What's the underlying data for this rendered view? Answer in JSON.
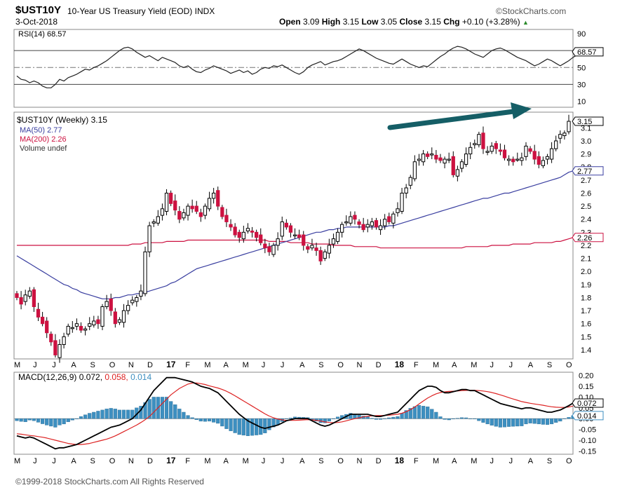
{
  "header": {
    "symbol": "$UST10Y",
    "description": "10-Year US Treasury Yield (EOD)",
    "exchange": "INDX",
    "brand": "©StockCharts.com",
    "date": "3-Oct-2018",
    "open_label": "Open",
    "open": "3.09",
    "high_label": "High",
    "high": "3.15",
    "low_label": "Low",
    "low": "3.05",
    "close_label": "Close",
    "close": "3.15",
    "chg_label": "Chg",
    "chg": "+0.10 (+3.28%)",
    "chg_arrow": "▲"
  },
  "footer": {
    "copyright": "©1999-2018 StockCharts.com All Rights Reserved"
  },
  "colors": {
    "up": "#ffffff",
    "down": "#cc1140",
    "outline": "#000000",
    "ma50": "#3a3fa0",
    "ma200": "#cc1140",
    "macd": "#000000",
    "signal": "#dd2222",
    "histogram": "#3d8fc0",
    "arrow": "#155e66"
  },
  "chart_data": [
    {
      "type": "line",
      "panel": "RSI",
      "legend": "RSI(14) 68.57",
      "last_value_label": "68.57",
      "yticks": [
        10,
        30,
        50,
        70,
        90
      ],
      "ylim": [
        3,
        95
      ],
      "reference_lines": [
        30,
        50,
        70
      ],
      "values": [
        40,
        36,
        35,
        32,
        34,
        32,
        28,
        26,
        26,
        30,
        36,
        34,
        38,
        40,
        42,
        45,
        48,
        47,
        50,
        52,
        55,
        58,
        62,
        66,
        70,
        73,
        74,
        72,
        68,
        65,
        62,
        64,
        61,
        58,
        62,
        60,
        58,
        56,
        52,
        50,
        52,
        48,
        45,
        44,
        47,
        49,
        52,
        50,
        48,
        46,
        43,
        45,
        47,
        44,
        46,
        42,
        44,
        48,
        50,
        49,
        52,
        51,
        53,
        50,
        47,
        44,
        42,
        45,
        50,
        53,
        55,
        57,
        53,
        55,
        57,
        58,
        60,
        63,
        66,
        69,
        72,
        70,
        67,
        64,
        61,
        59,
        57,
        55,
        54,
        57,
        60,
        57,
        54,
        52,
        50,
        52,
        51,
        55,
        59,
        63,
        66,
        70,
        73,
        75,
        74,
        72,
        69,
        66,
        64,
        62,
        66,
        70,
        72,
        73,
        71,
        68,
        65,
        62,
        60,
        58,
        55,
        52,
        54,
        57,
        60,
        58,
        55,
        52,
        55,
        58,
        62,
        65,
        68.57
      ]
    },
    {
      "type": "candlestick",
      "panel": "Price",
      "legend_title": "$UST10Y (Weekly) 3.15",
      "legend_ma50": "MA(50) 2.77",
      "legend_ma200": "MA(200) 2.26",
      "legend_volume": "Volume undef",
      "last_value_labels": [
        "3.15",
        "2.77",
        "2.26"
      ],
      "ylim": [
        1.33,
        3.22
      ],
      "yticks": [
        1.4,
        1.5,
        1.6,
        1.7,
        1.8,
        1.9,
        2.0,
        2.1,
        2.2,
        2.3,
        2.4,
        2.5,
        2.6,
        2.7,
        2.8,
        2.9,
        3.0,
        3.1
      ],
      "x_axis_labels": [
        "M",
        "J",
        "J",
        "A",
        "S",
        "O",
        "N",
        "D",
        "17",
        "F",
        "M",
        "A",
        "M",
        "J",
        "J",
        "A",
        "S",
        "O",
        "N",
        "D",
        "18",
        "F",
        "M",
        "A",
        "M",
        "J",
        "J",
        "A",
        "S",
        "O"
      ],
      "close": [
        1.8,
        1.75,
        1.82,
        1.85,
        1.73,
        1.65,
        1.6,
        1.53,
        1.46,
        1.36,
        1.44,
        1.5,
        1.58,
        1.57,
        1.6,
        1.55,
        1.56,
        1.6,
        1.62,
        1.6,
        1.73,
        1.77,
        1.7,
        1.6,
        1.63,
        1.7,
        1.74,
        1.78,
        1.8,
        1.85,
        2.15,
        2.35,
        2.38,
        2.42,
        2.48,
        2.6,
        2.52,
        2.47,
        2.4,
        2.45,
        2.5,
        2.48,
        2.46,
        2.42,
        2.5,
        2.56,
        2.6,
        2.5,
        2.42,
        2.38,
        2.34,
        2.28,
        2.26,
        2.3,
        2.33,
        2.3,
        2.26,
        2.22,
        2.18,
        2.15,
        2.2,
        2.25,
        2.38,
        2.34,
        2.3,
        2.28,
        2.26,
        2.2,
        2.17,
        2.2,
        2.16,
        2.08,
        2.15,
        2.2,
        2.25,
        2.3,
        2.36,
        2.38,
        2.42,
        2.4,
        2.36,
        2.32,
        2.36,
        2.38,
        2.34,
        2.35,
        2.4,
        2.38,
        2.44,
        2.48,
        2.6,
        2.64,
        2.72,
        2.84,
        2.86,
        2.9,
        2.88,
        2.9,
        2.86,
        2.85,
        2.86,
        2.86,
        2.74,
        2.78,
        2.84,
        2.9,
        2.95,
        2.98,
        3.05,
        2.94,
        2.92,
        2.96,
        2.94,
        2.92,
        2.87,
        2.86,
        2.84,
        2.86,
        2.87,
        2.96,
        2.92,
        2.86,
        2.82,
        2.85,
        2.88,
        2.94,
        3.0,
        3.05,
        3.06,
        3.15
      ],
      "ma50": [
        2.12,
        2.1,
        2.08,
        2.06,
        2.04,
        2.02,
        2.0,
        1.98,
        1.96,
        1.94,
        1.92,
        1.9,
        1.89,
        1.87,
        1.86,
        1.84,
        1.83,
        1.82,
        1.81,
        1.8,
        1.79,
        1.79,
        1.79,
        1.8,
        1.8,
        1.81,
        1.82,
        1.82,
        1.83,
        1.83,
        1.84,
        1.85,
        1.86,
        1.87,
        1.88,
        1.89,
        1.91,
        1.92,
        1.94,
        1.96,
        1.98,
        2.0,
        2.02,
        2.03,
        2.04,
        2.05,
        2.06,
        2.07,
        2.08,
        2.09,
        2.1,
        2.11,
        2.12,
        2.13,
        2.14,
        2.15,
        2.16,
        2.17,
        2.18,
        2.19,
        2.2,
        2.21,
        2.22,
        2.23,
        2.24,
        2.25,
        2.26,
        2.27,
        2.28,
        2.29,
        2.3,
        2.3,
        2.31,
        2.32,
        2.32,
        2.33,
        2.33,
        2.34,
        2.34,
        2.34,
        2.34,
        2.34,
        2.34,
        2.34,
        2.34,
        2.34,
        2.34,
        2.35,
        2.35,
        2.36,
        2.37,
        2.38,
        2.39,
        2.4,
        2.41,
        2.42,
        2.43,
        2.44,
        2.45,
        2.46,
        2.47,
        2.48,
        2.49,
        2.5,
        2.51,
        2.52,
        2.53,
        2.54,
        2.55,
        2.56,
        2.56,
        2.57,
        2.58,
        2.59,
        2.6,
        2.6,
        2.61,
        2.62,
        2.63,
        2.64,
        2.65,
        2.66,
        2.67,
        2.68,
        2.69,
        2.7,
        2.71,
        2.72,
        2.74,
        2.76,
        2.77
      ],
      "ma200": [
        2.2,
        2.2,
        2.2,
        2.2,
        2.2,
        2.2,
        2.2,
        2.2,
        2.2,
        2.2,
        2.2,
        2.2,
        2.2,
        2.2,
        2.2,
        2.2,
        2.2,
        2.2,
        2.2,
        2.2,
        2.2,
        2.2,
        2.2,
        2.2,
        2.2,
        2.2,
        2.2,
        2.21,
        2.21,
        2.21,
        2.22,
        2.22,
        2.22,
        2.22,
        2.22,
        2.23,
        2.23,
        2.23,
        2.23,
        2.23,
        2.24,
        2.24,
        2.24,
        2.24,
        2.24,
        2.24,
        2.24,
        2.24,
        2.24,
        2.24,
        2.24,
        2.24,
        2.24,
        2.24,
        2.24,
        2.24,
        2.24,
        2.24,
        2.24,
        2.23,
        2.23,
        2.23,
        2.23,
        2.23,
        2.22,
        2.22,
        2.22,
        2.22,
        2.22,
        2.21,
        2.21,
        2.21,
        2.21,
        2.21,
        2.2,
        2.2,
        2.2,
        2.2,
        2.2,
        2.19,
        2.19,
        2.19,
        2.19,
        2.19,
        2.19,
        2.18,
        2.18,
        2.18,
        2.18,
        2.18,
        2.18,
        2.18,
        2.18,
        2.18,
        2.18,
        2.18,
        2.18,
        2.18,
        2.18,
        2.18,
        2.18,
        2.18,
        2.18,
        2.18,
        2.18,
        2.19,
        2.19,
        2.19,
        2.19,
        2.19,
        2.19,
        2.2,
        2.2,
        2.2,
        2.2,
        2.2,
        2.21,
        2.21,
        2.21,
        2.21,
        2.21,
        2.22,
        2.22,
        2.22,
        2.22,
        2.22,
        2.23,
        2.23,
        2.24,
        2.25,
        2.26
      ]
    },
    {
      "type": "line",
      "panel": "MACD",
      "legend": "MACD(12,26,9) 0.072, 0.058, 0.014",
      "legend_main": "MACD(12,26,9) 0.072,",
      "legend_signal": "0.058",
      "legend_hist": "0.014",
      "last_value_labels": [
        "0.072",
        "0.014"
      ],
      "ylim": [
        -0.165,
        0.215
      ],
      "yticks": [
        0.2,
        0.15,
        0.1,
        0.05,
        0.0,
        -0.05,
        -0.1,
        -0.15
      ],
      "macd": [
        -0.08,
        -0.085,
        -0.09,
        -0.085,
        -0.09,
        -0.1,
        -0.11,
        -0.12,
        -0.13,
        -0.14,
        -0.135,
        -0.135,
        -0.13,
        -0.125,
        -0.12,
        -0.11,
        -0.1,
        -0.09,
        -0.08,
        -0.07,
        -0.06,
        -0.05,
        -0.04,
        -0.035,
        -0.03,
        -0.02,
        -0.01,
        0.0,
        0.02,
        0.04,
        0.07,
        0.1,
        0.13,
        0.15,
        0.17,
        0.19,
        0.19,
        0.19,
        0.185,
        0.18,
        0.175,
        0.17,
        0.16,
        0.15,
        0.145,
        0.14,
        0.13,
        0.12,
        0.1,
        0.08,
        0.06,
        0.04,
        0.02,
        0.005,
        -0.01,
        -0.02,
        -0.03,
        -0.04,
        -0.045,
        -0.04,
        -0.035,
        -0.03,
        -0.02,
        -0.01,
        -0.005,
        0.0,
        0.0,
        0.0,
        0.0,
        -0.01,
        -0.02,
        -0.03,
        -0.035,
        -0.03,
        -0.02,
        -0.01,
        0.0,
        0.01,
        0.02,
        0.02,
        0.02,
        0.02,
        0.02,
        0.015,
        0.01,
        0.01,
        0.015,
        0.02,
        0.025,
        0.03,
        0.05,
        0.07,
        0.09,
        0.11,
        0.13,
        0.14,
        0.15,
        0.15,
        0.145,
        0.13,
        0.12,
        0.12,
        0.125,
        0.13,
        0.135,
        0.135,
        0.13,
        0.13,
        0.12,
        0.11,
        0.1,
        0.09,
        0.08,
        0.07,
        0.065,
        0.06,
        0.055,
        0.05,
        0.045,
        0.05,
        0.05,
        0.045,
        0.04,
        0.035,
        0.03,
        0.03,
        0.035,
        0.04,
        0.05,
        0.06,
        0.072
      ],
      "signal": [
        -0.07,
        -0.072,
        -0.075,
        -0.078,
        -0.08,
        -0.083,
        -0.086,
        -0.09,
        -0.095,
        -0.1,
        -0.105,
        -0.11,
        -0.115,
        -0.118,
        -0.12,
        -0.12,
        -0.118,
        -0.115,
        -0.11,
        -0.105,
        -0.1,
        -0.095,
        -0.088,
        -0.08,
        -0.07,
        -0.06,
        -0.05,
        -0.04,
        -0.03,
        -0.018,
        -0.005,
        0.01,
        0.03,
        0.05,
        0.07,
        0.09,
        0.11,
        0.125,
        0.14,
        0.15,
        0.16,
        0.165,
        0.165,
        0.162,
        0.158,
        0.152,
        0.147,
        0.142,
        0.135,
        0.127,
        0.117,
        0.106,
        0.094,
        0.082,
        0.07,
        0.058,
        0.046,
        0.034,
        0.022,
        0.012,
        0.004,
        -0.002,
        -0.006,
        -0.008,
        -0.008,
        -0.008,
        -0.007,
        -0.006,
        -0.005,
        -0.006,
        -0.008,
        -0.011,
        -0.015,
        -0.018,
        -0.019,
        -0.018,
        -0.015,
        -0.01,
        -0.005,
        0.0,
        0.004,
        0.008,
        0.011,
        0.013,
        0.014,
        0.014,
        0.015,
        0.016,
        0.018,
        0.02,
        0.025,
        0.032,
        0.042,
        0.054,
        0.068,
        0.082,
        0.095,
        0.106,
        0.115,
        0.121,
        0.124,
        0.126,
        0.127,
        0.128,
        0.13,
        0.131,
        0.131,
        0.131,
        0.13,
        0.128,
        0.125,
        0.121,
        0.116,
        0.11,
        0.104,
        0.097,
        0.091,
        0.085,
        0.079,
        0.075,
        0.071,
        0.068,
        0.065,
        0.062,
        0.058,
        0.055,
        0.053,
        0.052,
        0.052,
        0.054,
        0.058
      ]
    }
  ]
}
